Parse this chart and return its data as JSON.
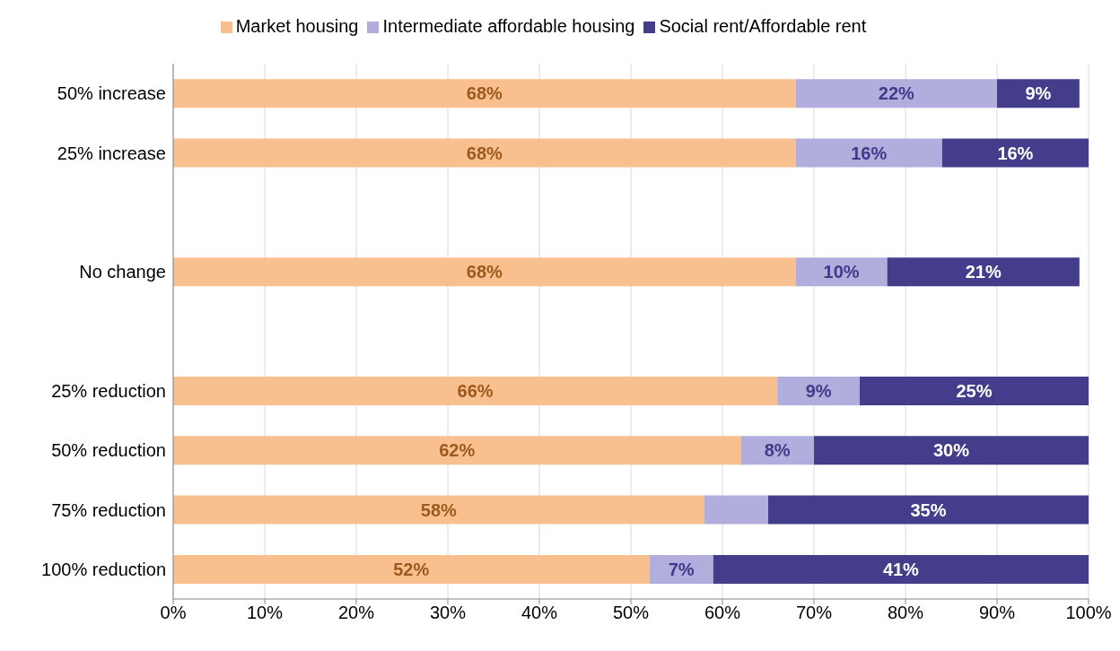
{
  "chart_data": {
    "type": "bar",
    "orientation": "horizontal",
    "stacked": true,
    "categories": [
      "50% increase",
      "25% increase",
      null,
      "No change",
      null,
      "25% reduction",
      "50% reduction",
      "75% reduction",
      "100% reduction"
    ],
    "series": [
      {
        "name": "Market housing",
        "color": "#f9c08f",
        "values": [
          68,
          68,
          null,
          68,
          null,
          66,
          62,
          58,
          52
        ],
        "value_labels": [
          "68%",
          "68%",
          null,
          "68%",
          null,
          "66%",
          "62%",
          "58%",
          "52%"
        ]
      },
      {
        "name": "Intermediate affordable housing",
        "color": "#b1aede",
        "values": [
          22,
          16,
          null,
          10,
          null,
          9,
          8,
          7,
          7
        ],
        "value_labels": [
          "22%",
          "16%",
          null,
          "10%",
          null,
          "9%",
          "8%",
          null,
          "7%"
        ]
      },
      {
        "name": "Social rent/Affordable rent",
        "color": "#433d8b",
        "values": [
          9,
          16,
          null,
          21,
          null,
          25,
          30,
          35,
          41
        ],
        "value_labels": [
          "9%",
          "16%",
          null,
          "21%",
          null,
          "25%",
          "30%",
          "35%",
          "41%"
        ]
      }
    ],
    "xlim": [
      0,
      100
    ],
    "xticks": [
      {
        "value": 0,
        "label": "0%"
      },
      {
        "value": 10,
        "label": "10%"
      },
      {
        "value": 20,
        "label": "20%"
      },
      {
        "value": 30,
        "label": "30%"
      },
      {
        "value": 40,
        "label": "40%"
      },
      {
        "value": 50,
        "label": "50%"
      },
      {
        "value": 60,
        "label": "60%"
      },
      {
        "value": 70,
        "label": "70%"
      },
      {
        "value": 80,
        "label": "80%"
      },
      {
        "value": 90,
        "label": "90%"
      },
      {
        "value": 100,
        "label": "100%"
      }
    ],
    "grid": "x",
    "legend": "top"
  }
}
